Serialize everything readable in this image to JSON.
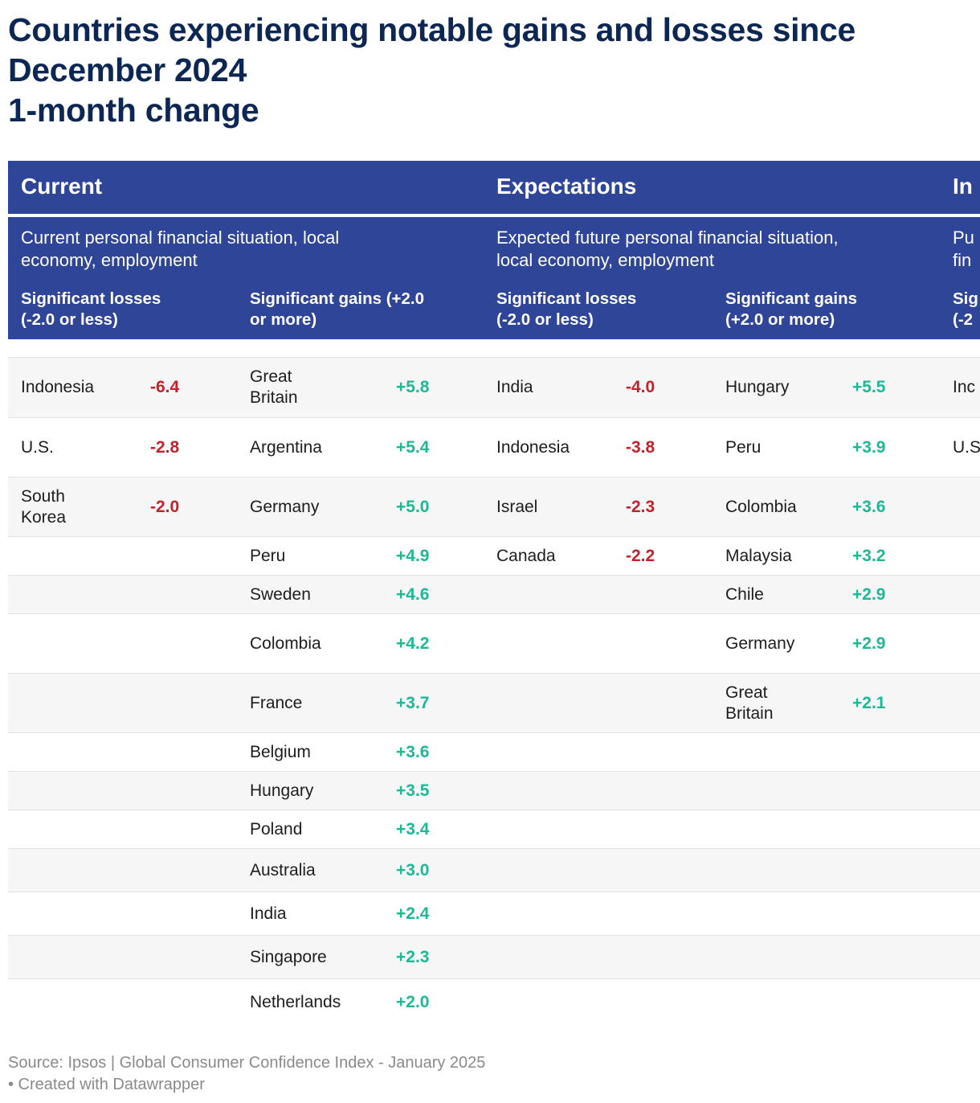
{
  "title": {
    "line1": "Countries experiencing notable gains and losses since",
    "line2": "December 2024",
    "line3": "1-month change"
  },
  "colors": {
    "header_bg": "#2f4598",
    "title": "#0c2753",
    "loss": "#c4212a",
    "gain": "#1db895"
  },
  "groups": [
    {
      "name": "Current",
      "desc_line1": "Current personal financial situation, local",
      "desc_line2": "economy, employment",
      "losses_hdr1": "Significant losses",
      "losses_hdr2": "(-2.0 or less)",
      "gains_hdr1": "Significant gains (+2.0",
      "gains_hdr2": "or more)"
    },
    {
      "name": "Expectations",
      "desc_line1": "Expected future personal financial situation,",
      "desc_line2": "local economy, employment",
      "losses_hdr1": "Significant losses",
      "losses_hdr2": "(-2.0 or less)",
      "gains_hdr1": "Significant gains",
      "gains_hdr2": "(+2.0 or more)"
    },
    {
      "name": "In",
      "desc_line1": "Pu",
      "desc_line2": "fin",
      "losses_hdr1": "Sig",
      "losses_hdr2": "(-2"
    }
  ],
  "chart_data": {
    "type": "table",
    "title": "Countries experiencing notable gains and losses since December 2024 1-month change",
    "columns": [
      "Current losses",
      "Current gains",
      "Expectations losses",
      "Expectations gains",
      "In… losses"
    ],
    "rows": [
      {
        "c_loss_country": "Indonesia",
        "c_loss_value": "-6.4",
        "c_gain_country_1": "Great",
        "c_gain_country_2": "Britain",
        "c_gain_value": "+5.8",
        "e_loss_country": "India",
        "e_loss_value": "-4.0",
        "e_gain_country_1": "Hungary",
        "e_gain_country_2": "",
        "e_gain_value": "+5.5",
        "i_loss_country": "Inc"
      },
      {
        "c_loss_country": "U.S.",
        "c_loss_value": "-2.8",
        "c_gain_country_1": "Argentina",
        "c_gain_country_2": "",
        "c_gain_value": "+5.4",
        "e_loss_country": "Indonesia",
        "e_loss_value": "-3.8",
        "e_gain_country_1": "Peru",
        "e_gain_country_2": "",
        "e_gain_value": "+3.9",
        "i_loss_country": "U.S"
      },
      {
        "c_loss_country_1": "South",
        "c_loss_country_2": "Korea",
        "c_loss_value": "-2.0",
        "c_gain_country_1": "Germany",
        "c_gain_country_2": "",
        "c_gain_value": "+5.0",
        "e_loss_country": "Israel",
        "e_loss_value": "-2.3",
        "e_gain_country_1": "Colombia",
        "e_gain_country_2": "",
        "e_gain_value": "+3.6"
      },
      {
        "c_gain_country_1": "Peru",
        "c_gain_country_2": "",
        "c_gain_value": "+4.9",
        "e_loss_country": "Canada",
        "e_loss_value": "-2.2",
        "e_gain_country_1": "Malaysia",
        "e_gain_country_2": "",
        "e_gain_value": "+3.2"
      },
      {
        "c_gain_country_1": "Sweden",
        "c_gain_country_2": "",
        "c_gain_value": "+4.6",
        "e_gain_country_1": "Chile",
        "e_gain_country_2": "",
        "e_gain_value": "+2.9"
      },
      {
        "c_gain_country_1": "Colombia",
        "c_gain_country_2": "",
        "c_gain_value": "+4.2",
        "e_gain_country_1": "Germany",
        "e_gain_country_2": "",
        "e_gain_value": "+2.9"
      },
      {
        "c_gain_country_1": "France",
        "c_gain_country_2": "",
        "c_gain_value": "+3.7",
        "e_gain_country_1": "Great",
        "e_gain_country_2": "Britain",
        "e_gain_value": "+2.1"
      },
      {
        "c_gain_country_1": "Belgium",
        "c_gain_country_2": "",
        "c_gain_value": "+3.6"
      },
      {
        "c_gain_country_1": "Hungary",
        "c_gain_country_2": "",
        "c_gain_value": "+3.5"
      },
      {
        "c_gain_country_1": "Poland",
        "c_gain_country_2": "",
        "c_gain_value": "+3.4"
      },
      {
        "c_gain_country_1": "Australia",
        "c_gain_country_2": "",
        "c_gain_value": "+3.0"
      },
      {
        "c_gain_country_1": "India",
        "c_gain_country_2": "",
        "c_gain_value": "+2.4"
      },
      {
        "c_gain_country_1": "Singapore",
        "c_gain_country_2": "",
        "c_gain_value": "+2.3"
      },
      {
        "c_gain_country_1": "Netherlands",
        "c_gain_country_2": "",
        "c_gain_value": "+2.0"
      }
    ]
  },
  "source": {
    "line1": "Source: Ipsos | Global Consumer Confidence Index - January 2025",
    "line2": " • Created with Datawrapper"
  }
}
